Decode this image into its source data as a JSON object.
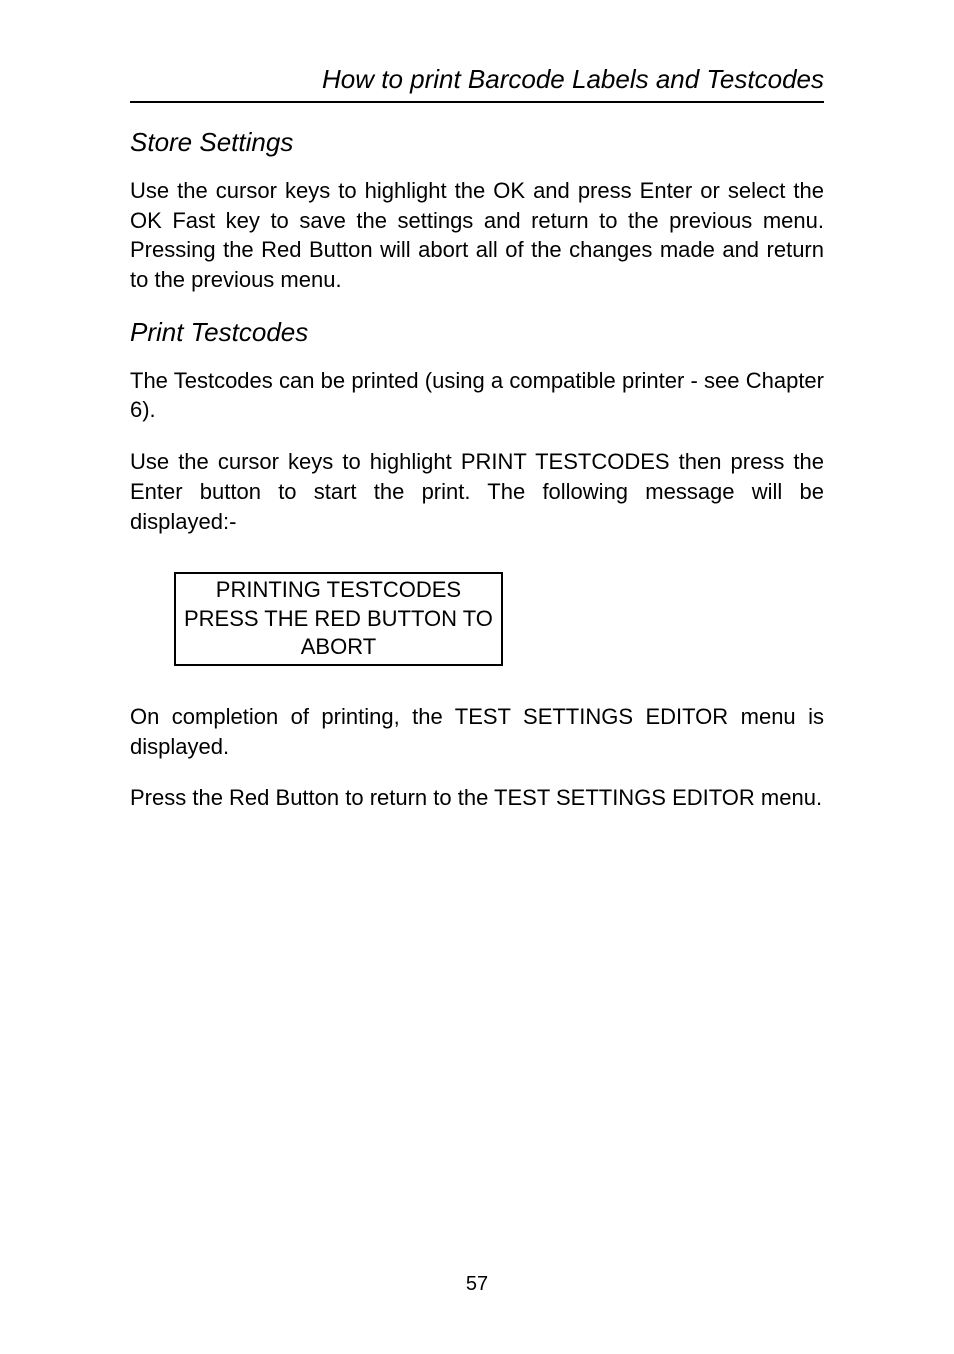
{
  "header": {
    "title": "How to print Barcode Labels and Testcodes"
  },
  "sections": [
    {
      "heading": "Store Settings",
      "paragraphs": [
        "Use the cursor keys to highlight the OK and press Enter or select the OK Fast key to save the settings and return to the previous menu. Pressing the Red Button will abort all of the changes made and return to the previous menu."
      ]
    },
    {
      "heading": "Print Testcodes",
      "paragraphs": [
        "The Testcodes can be printed (using a compatible printer - see Chapter 6).",
        "Use the cursor keys to highlight PRINT TESTCODES then press the Enter button to start the print. The following message will be displayed:-"
      ]
    }
  ],
  "message_box": {
    "line1": "PRINTING TESTCODES",
    "line2": "PRESS THE RED BUTTON TO",
    "line3": "ABORT"
  },
  "after_box_paragraphs": [
    "On completion of printing, the TEST SETTINGS EDITOR menu is displayed.",
    "Press the Red Button to return to the TEST SETTINGS EDITOR menu."
  ],
  "page_number": "57",
  "colors": {
    "text": "#000000",
    "background": "#ffffff",
    "rule": "#000000"
  },
  "typography": {
    "body_fontsize": 22,
    "heading_fontsize": 26,
    "heading_style": "italic",
    "header_fontsize": 26,
    "header_style": "italic"
  }
}
